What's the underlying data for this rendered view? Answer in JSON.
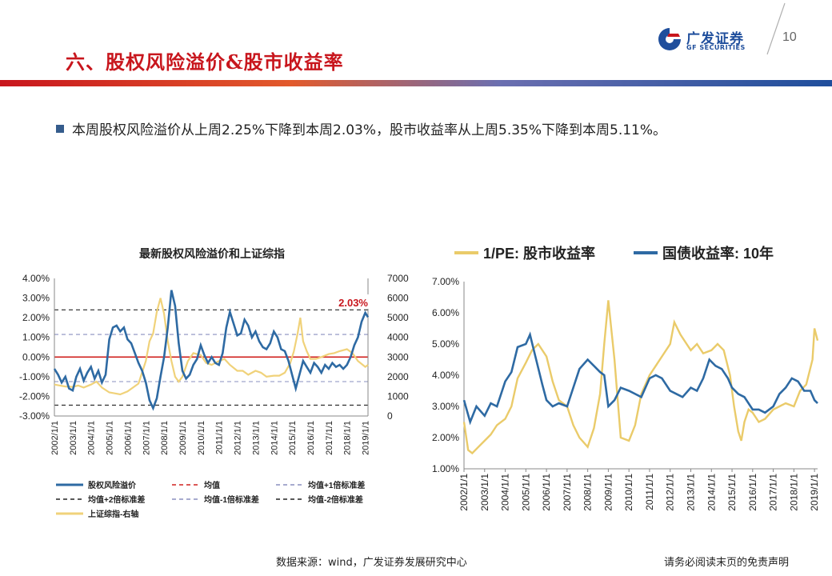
{
  "header": {
    "title": "六、股权风险溢价&股市收益率",
    "brand_cn": "广发证券",
    "brand_en": "GF SECURITIES",
    "page_number": "10"
  },
  "summary": "本周股权风险溢价从上周2.25%下降到本周2.03%，股市收益率从上周5.35%下降到本周5.11%。",
  "footer": {
    "source": "数据来源：wind，广发证券发展研究中心",
    "disclaimer": "请务必阅读末页的免责声明"
  },
  "colors": {
    "accent_red": "#c8161d",
    "brand_blue": "#1f4e9c",
    "erp_blue": "#2e6aa3",
    "index_gold": "#f0d27a",
    "ey_gold": "#eacb6a",
    "bond_blue": "#2e6aa3"
  },
  "chart_data": [
    {
      "type": "line",
      "title": "最新股权风险溢价和上证综指",
      "x_ticks": [
        "2002/1/1",
        "2003/1/1",
        "2004/1/1",
        "2005/1/1",
        "2006/1/1",
        "2007/1/1",
        "2008/1/1",
        "2009/1/1",
        "2010/1/1",
        "2011/1/1",
        "2012/1/1",
        "2013/1/1",
        "2014/1/1",
        "2015/1/1",
        "2016/1/1",
        "2017/1/1",
        "2018/1/1",
        "2019/1/1"
      ],
      "xlim": [
        2002.0,
        2019.15
      ],
      "y_left_ticks": [
        "4.00%",
        "3.00%",
        "2.00%",
        "1.00%",
        "0.00%",
        "-1.00%",
        "-2.00%",
        "-3.00%"
      ],
      "ylim_left": [
        -3.0,
        4.0
      ],
      "y_right_ticks": [
        "7000",
        "6000",
        "5000",
        "4000",
        "3000",
        "2000",
        "1000",
        "0"
      ],
      "ylim_right": [
        0,
        7000
      ],
      "annotation": "2.03%",
      "reference_lines": [
        {
          "name": "均值",
          "value": 0.0,
          "style": "solid",
          "color": "#d0201e"
        },
        {
          "name": "均值+1倍标准差",
          "value": 1.15,
          "style": "dashed",
          "color": "#8a8fbf"
        },
        {
          "name": "均值+2倍标准差",
          "value": 2.4,
          "style": "dashed",
          "color": "#222222"
        },
        {
          "name": "均值-1倍标准差",
          "value": -1.25,
          "style": "dashed",
          "color": "#8a8fbf"
        },
        {
          "name": "均值-2倍标准差",
          "value": -2.45,
          "style": "dashed",
          "color": "#222222"
        }
      ],
      "legend": [
        {
          "label": "股权风险溢价",
          "style": "solid",
          "color": "#2e6aa3"
        },
        {
          "label": "均值",
          "style": "dashed",
          "color": "#d0201e"
        },
        {
          "label": "均值+1倍标准差",
          "style": "dashed",
          "color": "#8a8fbf"
        },
        {
          "label": "均值+2倍标准差",
          "style": "dashed",
          "color": "#222222"
        },
        {
          "label": "均值-1倍标准差",
          "style": "dashed",
          "color": "#8a8fbf"
        },
        {
          "label": "均值-2倍标准差",
          "style": "dashed",
          "color": "#222222"
        },
        {
          "label": "上证综指-右轴",
          "style": "solid",
          "color": "#f0d27a"
        }
      ],
      "series": [
        {
          "name": "股权风险溢价",
          "axis": "left",
          "x": [
            2002.0,
            2002.2,
            2002.4,
            2002.6,
            2002.8,
            2003.0,
            2003.2,
            2003.4,
            2003.6,
            2003.8,
            2004.0,
            2004.2,
            2004.4,
            2004.6,
            2004.8,
            2005.0,
            2005.2,
            2005.4,
            2005.6,
            2005.8,
            2006.0,
            2006.2,
            2006.4,
            2006.6,
            2006.8,
            2007.0,
            2007.2,
            2007.4,
            2007.6,
            2007.8,
            2008.0,
            2008.2,
            2008.4,
            2008.6,
            2008.8,
            2009.0,
            2009.2,
            2009.4,
            2009.6,
            2009.8,
            2010.0,
            2010.2,
            2010.4,
            2010.6,
            2010.8,
            2011.0,
            2011.2,
            2011.4,
            2011.6,
            2011.8,
            2012.0,
            2012.2,
            2012.4,
            2012.6,
            2012.8,
            2013.0,
            2013.2,
            2013.4,
            2013.6,
            2013.8,
            2014.0,
            2014.2,
            2014.4,
            2014.6,
            2014.8,
            2015.0,
            2015.2,
            2015.4,
            2015.6,
            2015.8,
            2016.0,
            2016.2,
            2016.4,
            2016.6,
            2016.8,
            2017.0,
            2017.2,
            2017.4,
            2017.6,
            2017.8,
            2018.0,
            2018.2,
            2018.4,
            2018.6,
            2018.8,
            2019.0,
            2019.15
          ],
          "values": [
            -0.6,
            -0.9,
            -1.3,
            -1.0,
            -1.6,
            -1.7,
            -1.0,
            -0.6,
            -1.2,
            -0.8,
            -0.5,
            -1.1,
            -0.7,
            -1.3,
            -0.9,
            0.9,
            1.5,
            1.6,
            1.3,
            1.5,
            0.9,
            0.7,
            0.2,
            -0.3,
            -0.7,
            -1.3,
            -2.2,
            -2.6,
            -2.1,
            -1.0,
            0.0,
            1.5,
            3.4,
            2.6,
            0.7,
            -0.7,
            -1.1,
            -0.9,
            -0.4,
            -0.1,
            0.6,
            0.1,
            -0.3,
            0.0,
            -0.3,
            -0.4,
            0.2,
            1.5,
            2.3,
            1.7,
            1.1,
            1.2,
            1.9,
            1.6,
            1.0,
            1.3,
            0.8,
            0.5,
            0.4,
            0.7,
            1.3,
            1.0,
            0.4,
            0.3,
            -0.2,
            -0.9,
            -1.6,
            -0.9,
            -0.2,
            -0.5,
            -0.8,
            -0.3,
            -0.5,
            -0.8,
            -0.4,
            -0.6,
            -0.3,
            -0.5,
            -0.4,
            -0.6,
            -0.4,
            0.0,
            0.6,
            1.0,
            1.8,
            2.25,
            2.03
          ]
        },
        {
          "name": "上证综指-右轴",
          "axis": "right",
          "x": [
            2002.0,
            2002.3,
            2002.6,
            2003.0,
            2003.3,
            2003.6,
            2004.0,
            2004.3,
            2004.6,
            2005.0,
            2005.3,
            2005.6,
            2006.0,
            2006.3,
            2006.6,
            2007.0,
            2007.2,
            2007.4,
            2007.6,
            2007.8,
            2008.0,
            2008.2,
            2008.4,
            2008.6,
            2008.8,
            2009.0,
            2009.3,
            2009.6,
            2010.0,
            2010.3,
            2010.6,
            2011.0,
            2011.3,
            2011.6,
            2012.0,
            2012.3,
            2012.6,
            2013.0,
            2013.3,
            2013.6,
            2014.0,
            2014.3,
            2014.6,
            2014.9,
            2015.1,
            2015.3,
            2015.45,
            2015.6,
            2015.8,
            2016.0,
            2016.3,
            2016.6,
            2017.0,
            2017.3,
            2017.6,
            2018.0,
            2018.3,
            2018.6,
            2019.0,
            2019.15
          ],
          "values": [
            1600,
            1550,
            1500,
            1480,
            1550,
            1450,
            1600,
            1750,
            1450,
            1200,
            1150,
            1100,
            1250,
            1450,
            1650,
            2800,
            3800,
            4200,
            5300,
            6000,
            5200,
            3800,
            2800,
            2000,
            1750,
            2000,
            2800,
            3200,
            3100,
            2700,
            2600,
            2800,
            2900,
            2600,
            2300,
            2300,
            2100,
            2300,
            2200,
            2000,
            2050,
            2050,
            2200,
            2700,
            3300,
            4200,
            5000,
            3800,
            3300,
            2900,
            2900,
            3000,
            3150,
            3200,
            3300,
            3400,
            3200,
            2800,
            2500,
            2600
          ]
        }
      ]
    },
    {
      "type": "line",
      "title": "",
      "x_ticks": [
        "2002/1/1",
        "2003/1/1",
        "2004/1/1",
        "2005/1/1",
        "2006/1/1",
        "2007/1/1",
        "2008/1/1",
        "2009/1/1",
        "2010/1/1",
        "2011/1/1",
        "2012/1/1",
        "2013/1/1",
        "2014/1/1",
        "2015/1/1",
        "2016/1/1",
        "2017/1/1",
        "2018/1/1",
        "2019/1/1"
      ],
      "xlim": [
        2002.0,
        2019.15
      ],
      "y_ticks": [
        "7.00%",
        "6.00%",
        "5.00%",
        "4.00%",
        "3.00%",
        "2.00%",
        "1.00%"
      ],
      "ylim": [
        1.0,
        7.0
      ],
      "legend": [
        {
          "label": "1/PE: 股市收益率",
          "color": "#eacb6a"
        },
        {
          "label": "国债收益率: 10年",
          "color": "#2e6aa3"
        }
      ],
      "series": [
        {
          "name": "1/PE: 股市收益率",
          "x": [
            2002.0,
            2002.2,
            2002.4,
            2002.7,
            2003.0,
            2003.3,
            2003.6,
            2004.0,
            2004.3,
            2004.6,
            2005.0,
            2005.3,
            2005.6,
            2006.0,
            2006.3,
            2006.6,
            2007.0,
            2007.3,
            2007.6,
            2008.0,
            2008.3,
            2008.6,
            2008.8,
            2009.0,
            2009.3,
            2009.6,
            2010.0,
            2010.3,
            2010.6,
            2011.0,
            2011.3,
            2011.6,
            2012.0,
            2012.2,
            2012.5,
            2012.8,
            2013.0,
            2013.3,
            2013.6,
            2014.0,
            2014.3,
            2014.6,
            2014.9,
            2015.1,
            2015.3,
            2015.45,
            2015.6,
            2015.8,
            2016.0,
            2016.3,
            2016.6,
            2017.0,
            2017.3,
            2017.6,
            2018.0,
            2018.3,
            2018.6,
            2018.9,
            2019.0,
            2019.15
          ],
          "values": [
            2.5,
            1.6,
            1.5,
            1.7,
            1.9,
            2.1,
            2.4,
            2.6,
            3.0,
            3.9,
            4.4,
            4.8,
            5.0,
            4.6,
            3.8,
            3.2,
            3.0,
            2.4,
            2.0,
            1.7,
            2.3,
            3.4,
            5.0,
            6.4,
            4.5,
            2.0,
            1.9,
            2.4,
            3.4,
            4.0,
            4.3,
            4.6,
            5.0,
            5.7,
            5.3,
            5.0,
            4.8,
            5.0,
            4.7,
            4.8,
            5.0,
            4.8,
            4.0,
            3.0,
            2.2,
            1.9,
            2.5,
            2.9,
            2.8,
            2.5,
            2.6,
            2.9,
            3.0,
            3.1,
            3.0,
            3.5,
            3.7,
            4.5,
            5.5,
            5.11
          ]
        },
        {
          "name": "国债收益率: 10年",
          "x": [
            2002.0,
            2002.3,
            2002.6,
            2003.0,
            2003.3,
            2003.6,
            2004.0,
            2004.3,
            2004.6,
            2005.0,
            2005.2,
            2005.5,
            2005.8,
            2006.0,
            2006.3,
            2006.6,
            2007.0,
            2007.3,
            2007.6,
            2008.0,
            2008.3,
            2008.6,
            2008.8,
            2009.0,
            2009.3,
            2009.6,
            2010.0,
            2010.3,
            2010.6,
            2011.0,
            2011.3,
            2011.6,
            2012.0,
            2012.3,
            2012.6,
            2013.0,
            2013.3,
            2013.6,
            2013.9,
            2014.2,
            2014.5,
            2014.8,
            2015.0,
            2015.3,
            2015.6,
            2016.0,
            2016.3,
            2016.6,
            2017.0,
            2017.3,
            2017.6,
            2017.9,
            2018.2,
            2018.5,
            2018.8,
            2019.0,
            2019.15
          ],
          "values": [
            3.2,
            2.5,
            3.0,
            2.7,
            3.1,
            3.0,
            3.8,
            4.1,
            4.9,
            5.0,
            5.3,
            4.5,
            3.7,
            3.2,
            3.0,
            3.1,
            3.0,
            3.6,
            4.2,
            4.5,
            4.3,
            4.1,
            4.0,
            3.0,
            3.2,
            3.6,
            3.5,
            3.4,
            3.3,
            3.9,
            4.0,
            3.9,
            3.5,
            3.4,
            3.3,
            3.6,
            3.5,
            3.9,
            4.5,
            4.3,
            4.2,
            3.9,
            3.6,
            3.4,
            3.3,
            2.9,
            2.9,
            2.8,
            3.0,
            3.4,
            3.6,
            3.9,
            3.8,
            3.5,
            3.5,
            3.2,
            3.1
          ]
        }
      ]
    }
  ]
}
